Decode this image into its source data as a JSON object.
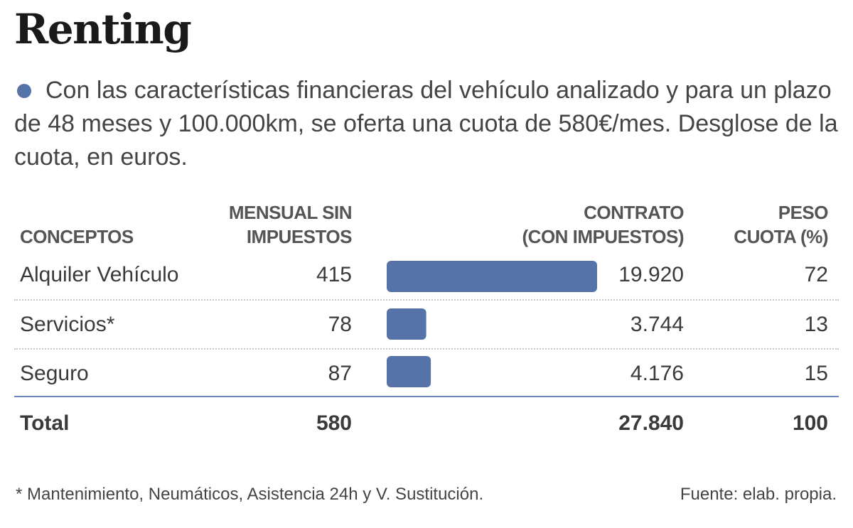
{
  "title": "Renting",
  "subtitle": "Con las características financieras del vehículo analizado y para un plazo de 48 meses y 100.000km, se oferta una cuota de 580€/mes. Desglose de la cuota, en euros.",
  "colors": {
    "bar": "#5573a9",
    "bullet": "#5573a9",
    "separator": "#6b86b8"
  },
  "headers": {
    "concept": "CONCEPTOS",
    "monthly_line1": "MENSUAL SIN",
    "monthly_line2": "IMPUESTOS",
    "contract_line1": "CONTRATO",
    "contract_line2": "(CON IMPUESTOS)",
    "weight_line1": "PESO",
    "weight_line2": "CUOTA (%)"
  },
  "rows": [
    {
      "concept": "Alquiler Vehículo",
      "monthly": "415",
      "contract": "19.920",
      "weight": "72"
    },
    {
      "concept": "Servicios*",
      "monthly": "78",
      "contract": "3.744",
      "weight": "13"
    },
    {
      "concept": "Seguro",
      "monthly": "87",
      "contract": "4.176",
      "weight": "15"
    }
  ],
  "total": {
    "concept": "Total",
    "monthly": "580",
    "contract": "27.840",
    "weight": "100"
  },
  "chart_data": {
    "type": "bar",
    "orientation": "horizontal",
    "title": "Renting",
    "categories": [
      "Alquiler Vehículo",
      "Servicios*",
      "Seguro"
    ],
    "series": [
      {
        "name": "Contrato (con impuestos)",
        "values": [
          19920,
          3744,
          4176
        ]
      },
      {
        "name": "Mensual sin impuestos",
        "values": [
          415,
          78,
          87
        ]
      },
      {
        "name": "Peso cuota (%)",
        "values": [
          72,
          13,
          15
        ]
      }
    ],
    "total": {
      "monthly": 580,
      "contract": 27840,
      "weight": 100
    },
    "xlim": [
      0,
      19920
    ],
    "grid": false
  },
  "footnote": "* Mantenimiento, Neumáticos, Asistencia 24h y V. Sustitución.",
  "source": "Fuente: elab. propia."
}
